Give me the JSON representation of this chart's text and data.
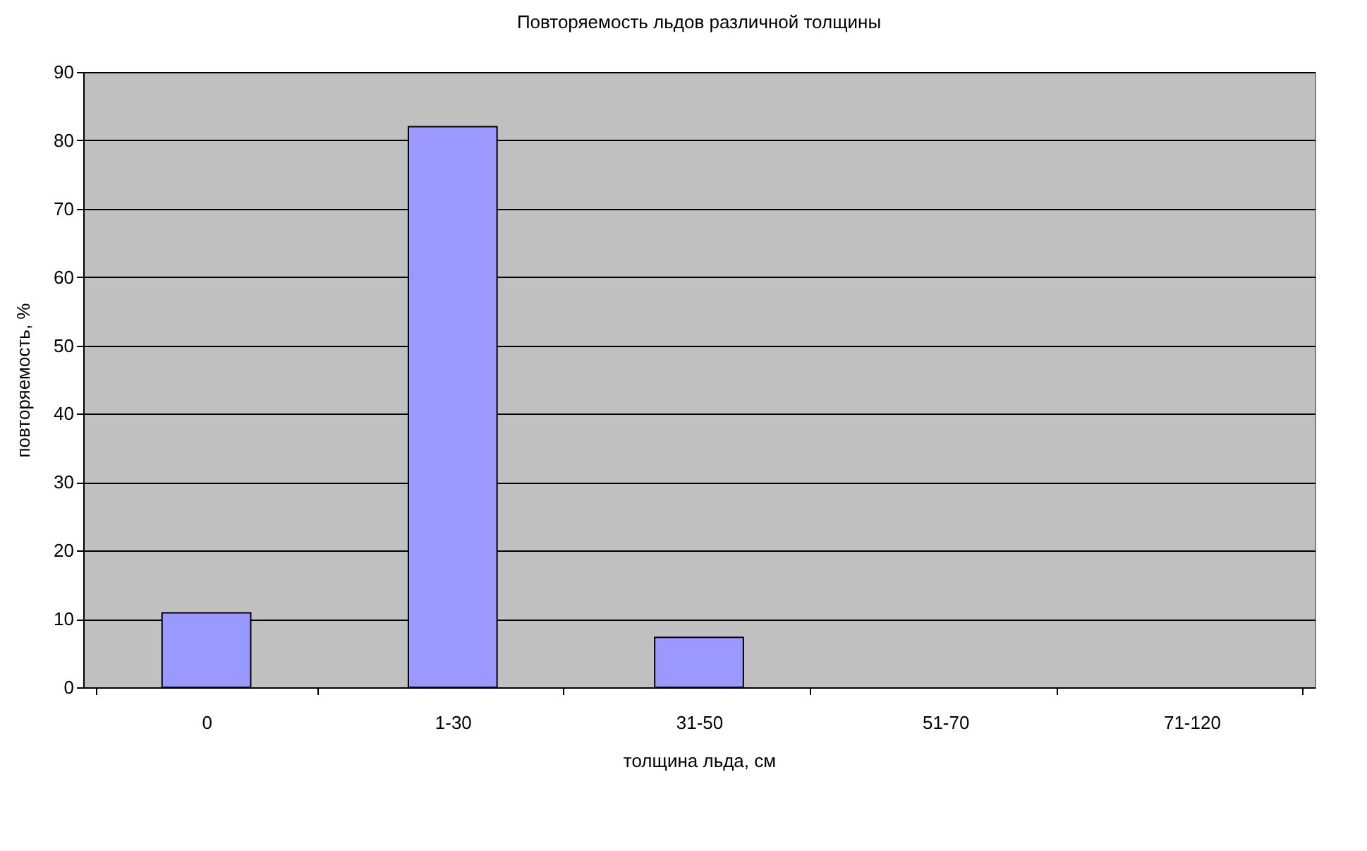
{
  "chart_data": {
    "type": "bar",
    "title": "Повторяемость льдов различной толщины",
    "xlabel": "толщина льда, см",
    "ylabel": "повторяемость, %",
    "categories": [
      "0",
      "1-30",
      "31-50",
      "51-70",
      "71-120"
    ],
    "values": [
      10.9,
      82,
      7.3,
      0,
      0
    ],
    "color": "#9999ff",
    "ylim": [
      0,
      90
    ],
    "yticks": [
      0,
      10,
      20,
      30,
      40,
      50,
      60,
      70,
      80,
      90
    ],
    "grid": "y"
  }
}
